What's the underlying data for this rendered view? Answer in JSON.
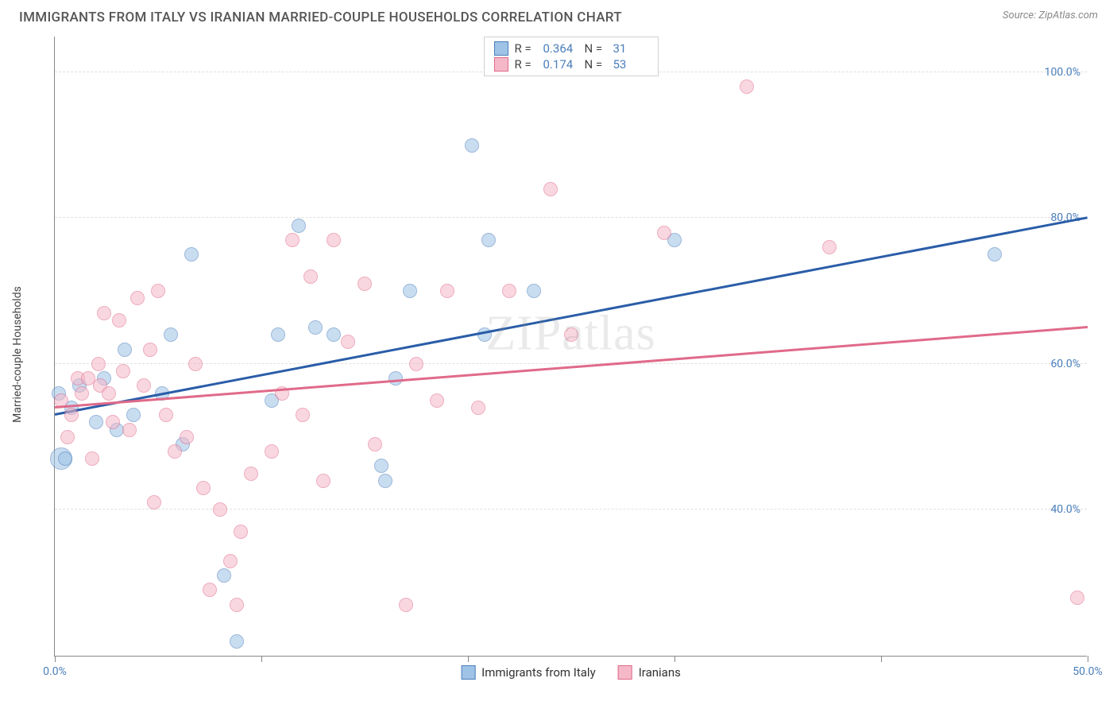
{
  "title": "IMMIGRANTS FROM ITALY VS IRANIAN MARRIED-COUPLE HOUSEHOLDS CORRELATION CHART",
  "source_label": "Source: ZipAtlas.com",
  "watermark": "ZIPatlas",
  "ylabel": "Married-couple Households",
  "chart": {
    "type": "scatter",
    "background_color": "#ffffff",
    "grid_color": "#e0e0e0",
    "axis_color": "#888888",
    "tick_label_color": "#4a7ebb",
    "xlim": [
      0,
      50
    ],
    "ylim": [
      20,
      105
    ],
    "yticks": [
      40,
      60,
      80,
      100
    ],
    "ytick_labels": [
      "40.0%",
      "60.0%",
      "80.0%",
      "100.0%"
    ],
    "xticks": [
      0,
      10,
      20,
      30,
      40,
      50
    ],
    "xtick_labels_shown": {
      "0": "0.0%",
      "50": "50.0%"
    },
    "marker_opacity": 0.55,
    "marker_radius": 9,
    "series": [
      {
        "name": "Immigrants from Italy",
        "fill_color": "#9ec3e6",
        "stroke_color": "#4a7ebb",
        "trend_color": "#2a5da8",
        "R": "0.364",
        "N": "31",
        "trend": {
          "x1": 0,
          "y1": 53,
          "x2": 50,
          "y2": 80
        },
        "points": [
          {
            "x": 0.2,
            "y": 56
          },
          {
            "x": 0.3,
            "y": 47,
            "r": 14
          },
          {
            "x": 0.8,
            "y": 54
          },
          {
            "x": 1.2,
            "y": 57
          },
          {
            "x": 2.0,
            "y": 52
          },
          {
            "x": 2.4,
            "y": 58
          },
          {
            "x": 3.0,
            "y": 51
          },
          {
            "x": 3.4,
            "y": 62
          },
          {
            "x": 5.2,
            "y": 56
          },
          {
            "x": 5.6,
            "y": 64
          },
          {
            "x": 6.2,
            "y": 49
          },
          {
            "x": 6.6,
            "y": 75
          },
          {
            "x": 8.2,
            "y": 31
          },
          {
            "x": 8.8,
            "y": 22
          },
          {
            "x": 10.5,
            "y": 55
          },
          {
            "x": 10.8,
            "y": 64
          },
          {
            "x": 11.8,
            "y": 79
          },
          {
            "x": 12.6,
            "y": 65
          },
          {
            "x": 13.5,
            "y": 64
          },
          {
            "x": 15.8,
            "y": 46
          },
          {
            "x": 16.0,
            "y": 44
          },
          {
            "x": 16.5,
            "y": 58
          },
          {
            "x": 17.2,
            "y": 70
          },
          {
            "x": 20.2,
            "y": 90
          },
          {
            "x": 20.8,
            "y": 64
          },
          {
            "x": 21.0,
            "y": 77
          },
          {
            "x": 23.2,
            "y": 70
          },
          {
            "x": 30.0,
            "y": 77
          },
          {
            "x": 45.5,
            "y": 75
          },
          {
            "x": 0.5,
            "y": 47
          },
          {
            "x": 3.8,
            "y": 53
          }
        ]
      },
      {
        "name": "Iranians",
        "fill_color": "#f5b8c8",
        "stroke_color": "#e06a8a",
        "trend_color": "#e06a8a",
        "R": "0.174",
        "N": "53",
        "trend": {
          "x1": 0,
          "y1": 54,
          "x2": 50,
          "y2": 65
        },
        "points": [
          {
            "x": 0.3,
            "y": 55
          },
          {
            "x": 0.6,
            "y": 50
          },
          {
            "x": 0.8,
            "y": 53
          },
          {
            "x": 1.1,
            "y": 58
          },
          {
            "x": 1.3,
            "y": 56
          },
          {
            "x": 1.6,
            "y": 58
          },
          {
            "x": 1.8,
            "y": 47
          },
          {
            "x": 2.1,
            "y": 60
          },
          {
            "x": 2.2,
            "y": 57
          },
          {
            "x": 2.4,
            "y": 67
          },
          {
            "x": 2.6,
            "y": 56
          },
          {
            "x": 2.8,
            "y": 52
          },
          {
            "x": 3.1,
            "y": 66
          },
          {
            "x": 3.3,
            "y": 59
          },
          {
            "x": 3.6,
            "y": 51
          },
          {
            "x": 4.0,
            "y": 69
          },
          {
            "x": 4.3,
            "y": 57
          },
          {
            "x": 4.6,
            "y": 62
          },
          {
            "x": 5.0,
            "y": 70
          },
          {
            "x": 5.4,
            "y": 53
          },
          {
            "x": 5.8,
            "y": 48
          },
          {
            "x": 6.4,
            "y": 50
          },
          {
            "x": 6.8,
            "y": 60
          },
          {
            "x": 7.2,
            "y": 43
          },
          {
            "x": 7.5,
            "y": 29
          },
          {
            "x": 8.0,
            "y": 40
          },
          {
            "x": 8.5,
            "y": 33
          },
          {
            "x": 8.8,
            "y": 27
          },
          {
            "x": 9.0,
            "y": 37
          },
          {
            "x": 9.5,
            "y": 45
          },
          {
            "x": 10.5,
            "y": 48
          },
          {
            "x": 11.0,
            "y": 56
          },
          {
            "x": 11.5,
            "y": 77
          },
          {
            "x": 12.0,
            "y": 53
          },
          {
            "x": 12.4,
            "y": 72
          },
          {
            "x": 13.0,
            "y": 44
          },
          {
            "x": 13.5,
            "y": 77
          },
          {
            "x": 14.2,
            "y": 63
          },
          {
            "x": 15.0,
            "y": 71
          },
          {
            "x": 15.5,
            "y": 49
          },
          {
            "x": 17.0,
            "y": 27
          },
          {
            "x": 17.5,
            "y": 60
          },
          {
            "x": 18.5,
            "y": 55
          },
          {
            "x": 19.0,
            "y": 70
          },
          {
            "x": 20.5,
            "y": 54
          },
          {
            "x": 22.0,
            "y": 70
          },
          {
            "x": 24.0,
            "y": 84
          },
          {
            "x": 25.0,
            "y": 64
          },
          {
            "x": 29.5,
            "y": 78
          },
          {
            "x": 33.5,
            "y": 98
          },
          {
            "x": 37.5,
            "y": 76
          },
          {
            "x": 49.5,
            "y": 28
          },
          {
            "x": 4.8,
            "y": 41
          }
        ]
      }
    ]
  },
  "legend_bottom": [
    {
      "label": "Immigrants from Italy",
      "fill": "#9ec3e6",
      "stroke": "#4a7ebb"
    },
    {
      "label": "Iranians",
      "fill": "#f5b8c8",
      "stroke": "#e06a8a"
    }
  ]
}
